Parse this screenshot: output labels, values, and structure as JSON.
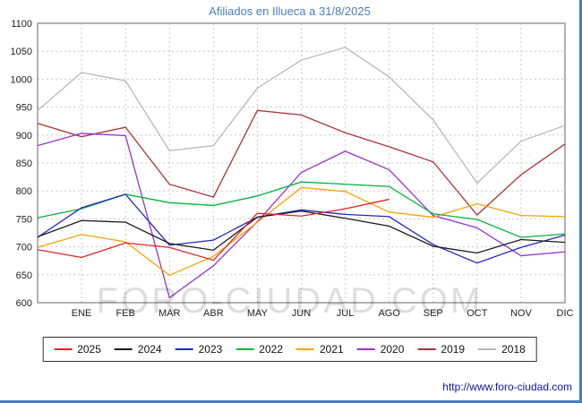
{
  "title": "Afiliados en Illueca a 31/8/2025",
  "watermark": "FORO-CIUDAD.COM",
  "footer": {
    "url_label": "http://www.foro-ciudad.com"
  },
  "colors": {
    "title_blue": "#4a7ebb",
    "outer_frame": "#4a7ebb",
    "grid": "#c9c9c9"
  },
  "chart_data": {
    "type": "line",
    "title": "Afiliados en Illueca a 31/8/2025",
    "categories": [
      "ENE",
      "FEB",
      "MAR",
      "ABR",
      "MAY",
      "JUN",
      "JUL",
      "AGO",
      "SEP",
      "OCT",
      "NOV",
      "DIC"
    ],
    "ylim": [
      600,
      1100
    ],
    "yticks": [
      600,
      650,
      700,
      750,
      800,
      850,
      900,
      950,
      1000,
      1050,
      1100
    ],
    "grid": true,
    "legend_position": "bottom",
    "note": "start = value where the line meets the left axis; 2025 data ends at AGO (31/8/2025)",
    "series": [
      {
        "name": "2025",
        "color": "#e32222",
        "start": 695,
        "values": [
          681,
          707,
          699,
          676,
          760,
          755,
          768,
          785,
          null,
          null,
          null,
          null
        ]
      },
      {
        "name": "2024",
        "color": "#1a1a1a",
        "start": 718,
        "values": [
          747,
          744,
          706,
          694,
          753,
          764,
          751,
          737,
          701,
          689,
          713,
          708
        ]
      },
      {
        "name": "2023",
        "color": "#2424c8",
        "start": 717,
        "values": [
          770,
          794,
          703,
          712,
          753,
          766,
          758,
          754,
          704,
          671,
          699,
          721
        ]
      },
      {
        "name": "2022",
        "color": "#00b43c",
        "start": 752,
        "values": [
          768,
          794,
          779,
          774,
          791,
          816,
          812,
          808,
          759,
          749,
          717,
          723
        ]
      },
      {
        "name": "2021",
        "color": "#ff9f00",
        "start": 699,
        "values": [
          722,
          709,
          649,
          683,
          744,
          806,
          799,
          762,
          753,
          777,
          756,
          754
        ]
      },
      {
        "name": "2020",
        "color": "#9932cc",
        "start": 881,
        "values": [
          903,
          899,
          609,
          666,
          745,
          833,
          871,
          838,
          756,
          734,
          684,
          691
        ]
      },
      {
        "name": "2019",
        "color": "#aa3333",
        "start": 921,
        "values": [
          897,
          914,
          812,
          789,
          944,
          936,
          904,
          879,
          852,
          757,
          829,
          884
        ]
      },
      {
        "name": "2018",
        "color": "#b8b8b8",
        "start": 944,
        "values": [
          1012,
          997,
          872,
          881,
          984,
          1034,
          1057,
          1004,
          927,
          814,
          889,
          917
        ]
      }
    ]
  }
}
